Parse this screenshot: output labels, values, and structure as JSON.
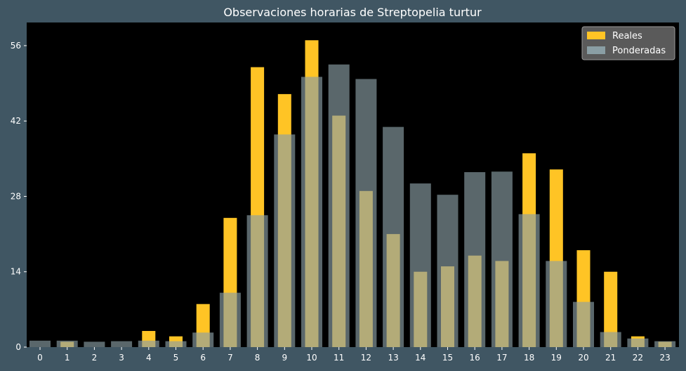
{
  "chart_data": {
    "type": "bar",
    "title": "Observaciones horarias de Streptopelia turtur",
    "xlabel": "",
    "ylabel": "",
    "categories": [
      "0",
      "1",
      "2",
      "3",
      "4",
      "5",
      "6",
      "7",
      "8",
      "9",
      "10",
      "11",
      "12",
      "13",
      "14",
      "15",
      "16",
      "17",
      "18",
      "19",
      "20",
      "21",
      "22",
      "23"
    ],
    "ylim": [
      0,
      60.3
    ],
    "yticks": [
      0,
      14,
      28,
      42,
      56
    ],
    "grid": false,
    "legend_position": "top-right",
    "series": [
      {
        "name": "Reales",
        "color": "#ffc425",
        "values": [
          0,
          1,
          0,
          0,
          3,
          2,
          8,
          24,
          52,
          47,
          57,
          43,
          29,
          21,
          14,
          15,
          17,
          16,
          36,
          33,
          18,
          14,
          2,
          1
        ]
      },
      {
        "name": "Ponderadas",
        "color": "#8a9ea4",
        "values": [
          1.2,
          1.2,
          1.0,
          1.1,
          1.2,
          1.1,
          2.7,
          10.1,
          24.5,
          39.5,
          50.2,
          52.5,
          49.8,
          40.9,
          30.4,
          28.3,
          32.5,
          32.6,
          24.7,
          16.0,
          8.4,
          2.8,
          1.6,
          1.1
        ]
      }
    ]
  }
}
